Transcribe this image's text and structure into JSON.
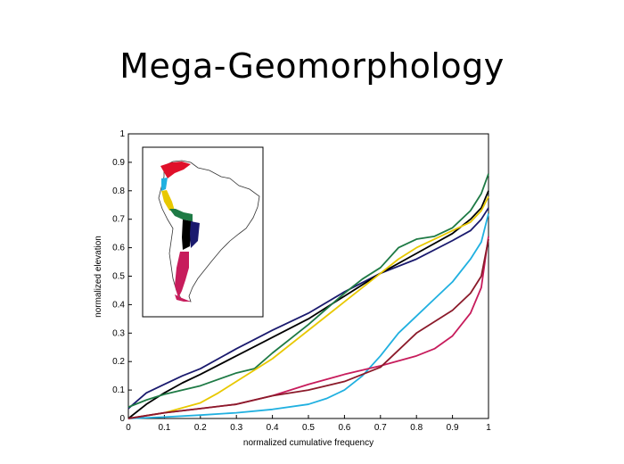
{
  "slide": {
    "title": "Mega-Geomorphology"
  },
  "chart_data": {
    "type": "line",
    "title": "",
    "xlabel": "normalized cumulative frequency",
    "ylabel": "normalized elevation",
    "xlim": [
      0,
      1
    ],
    "ylim": [
      0,
      1
    ],
    "xticks": [
      "0",
      "0.1",
      "0.2",
      "0.3",
      "0.4",
      "0.5",
      "0.6",
      "0.7",
      "0.8",
      "0.9",
      "1"
    ],
    "yticks": [
      "0",
      "0.1",
      "0.2",
      "0.3",
      "0.4",
      "0.5",
      "0.6",
      "0.7",
      "0.8",
      "0.9",
      "1"
    ],
    "grid": false,
    "inset": "map of South America with Andes segments colored to match curves",
    "series": [
      {
        "color": "#1a1a6e",
        "points": [
          [
            0,
            0.035
          ],
          [
            0.05,
            0.09
          ],
          [
            0.1,
            0.12
          ],
          [
            0.15,
            0.15
          ],
          [
            0.2,
            0.175
          ],
          [
            0.3,
            0.245
          ],
          [
            0.4,
            0.31
          ],
          [
            0.5,
            0.37
          ],
          [
            0.6,
            0.445
          ],
          [
            0.7,
            0.51
          ],
          [
            0.8,
            0.56
          ],
          [
            0.9,
            0.625
          ],
          [
            0.95,
            0.66
          ],
          [
            0.98,
            0.7
          ],
          [
            1,
            0.74
          ]
        ]
      },
      {
        "color": "#000000",
        "points": [
          [
            0,
            0.0
          ],
          [
            0.05,
            0.05
          ],
          [
            0.1,
            0.09
          ],
          [
            0.15,
            0.125
          ],
          [
            0.2,
            0.155
          ],
          [
            0.3,
            0.22
          ],
          [
            0.4,
            0.285
          ],
          [
            0.5,
            0.35
          ],
          [
            0.6,
            0.43
          ],
          [
            0.7,
            0.51
          ],
          [
            0.8,
            0.58
          ],
          [
            0.9,
            0.65
          ],
          [
            0.95,
            0.7
          ],
          [
            0.98,
            0.74
          ],
          [
            1,
            0.8
          ]
        ]
      },
      {
        "color": "#1e7a45",
        "points": [
          [
            0,
            0.04
          ],
          [
            0.05,
            0.065
          ],
          [
            0.1,
            0.085
          ],
          [
            0.2,
            0.115
          ],
          [
            0.3,
            0.16
          ],
          [
            0.35,
            0.175
          ],
          [
            0.4,
            0.23
          ],
          [
            0.5,
            0.33
          ],
          [
            0.6,
            0.44
          ],
          [
            0.65,
            0.49
          ],
          [
            0.7,
            0.53
          ],
          [
            0.75,
            0.6
          ],
          [
            0.8,
            0.63
          ],
          [
            0.85,
            0.64
          ],
          [
            0.9,
            0.67
          ],
          [
            0.95,
            0.73
          ],
          [
            0.98,
            0.79
          ],
          [
            1,
            0.86
          ]
        ]
      },
      {
        "color": "#e8c800",
        "points": [
          [
            0,
            0.0
          ],
          [
            0.1,
            0.02
          ],
          [
            0.2,
            0.055
          ],
          [
            0.25,
            0.09
          ],
          [
            0.3,
            0.13
          ],
          [
            0.4,
            0.21
          ],
          [
            0.5,
            0.31
          ],
          [
            0.6,
            0.41
          ],
          [
            0.7,
            0.51
          ],
          [
            0.75,
            0.56
          ],
          [
            0.8,
            0.6
          ],
          [
            0.9,
            0.66
          ],
          [
            0.95,
            0.69
          ],
          [
            0.98,
            0.73
          ],
          [
            1,
            0.78
          ]
        ]
      },
      {
        "color": "#20b0e0",
        "points": [
          [
            0,
            0.0
          ],
          [
            0.1,
            0.005
          ],
          [
            0.2,
            0.012
          ],
          [
            0.3,
            0.02
          ],
          [
            0.4,
            0.032
          ],
          [
            0.5,
            0.05
          ],
          [
            0.55,
            0.07
          ],
          [
            0.6,
            0.1
          ],
          [
            0.65,
            0.15
          ],
          [
            0.7,
            0.22
          ],
          [
            0.75,
            0.3
          ],
          [
            0.8,
            0.36
          ],
          [
            0.85,
            0.42
          ],
          [
            0.9,
            0.48
          ],
          [
            0.95,
            0.56
          ],
          [
            0.98,
            0.62
          ],
          [
            1,
            0.72
          ]
        ]
      },
      {
        "color": "#c71c5c",
        "points": [
          [
            0,
            0.0
          ],
          [
            0.05,
            0.01
          ],
          [
            0.1,
            0.02
          ],
          [
            0.2,
            0.035
          ],
          [
            0.3,
            0.05
          ],
          [
            0.4,
            0.08
          ],
          [
            0.5,
            0.12
          ],
          [
            0.6,
            0.155
          ],
          [
            0.7,
            0.185
          ],
          [
            0.8,
            0.22
          ],
          [
            0.85,
            0.245
          ],
          [
            0.9,
            0.29
          ],
          [
            0.95,
            0.37
          ],
          [
            0.98,
            0.46
          ],
          [
            1,
            0.64
          ]
        ]
      },
      {
        "color": "#8b1a2a",
        "points": [
          [
            0,
            0.0
          ],
          [
            0.05,
            0.01
          ],
          [
            0.1,
            0.02
          ],
          [
            0.2,
            0.035
          ],
          [
            0.3,
            0.05
          ],
          [
            0.4,
            0.08
          ],
          [
            0.5,
            0.1
          ],
          [
            0.6,
            0.13
          ],
          [
            0.7,
            0.18
          ],
          [
            0.75,
            0.24
          ],
          [
            0.8,
            0.3
          ],
          [
            0.85,
            0.34
          ],
          [
            0.9,
            0.38
          ],
          [
            0.95,
            0.44
          ],
          [
            0.98,
            0.5
          ],
          [
            1,
            0.63
          ]
        ]
      }
    ]
  }
}
